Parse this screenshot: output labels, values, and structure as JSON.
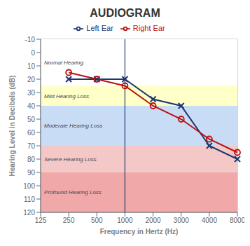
{
  "chart_data": {
    "type": "line",
    "title": "AUDIOGRAM",
    "x_label": "Frequency in Hertz (Hz)",
    "y_label": "Hearing Level in Decibels (dB)",
    "categories": [
      "125",
      "250",
      "500",
      "1000",
      "2000",
      "3000",
      "4000",
      "8000"
    ],
    "series": [
      {
        "name": "Left Ear",
        "color": "#1a3870",
        "marker": "x",
        "values": [
          null,
          20,
          20,
          20,
          35,
          40,
          70,
          80
        ]
      },
      {
        "name": "Right Ear",
        "color": "#bb1111",
        "marker": "circle",
        "values": [
          null,
          15,
          20,
          25,
          40,
          50,
          65,
          75
        ]
      }
    ],
    "ylim": [
      120,
      -10
    ],
    "yticks": [
      -10,
      0,
      10,
      20,
      30,
      40,
      50,
      60,
      70,
      80,
      90,
      100,
      110,
      120
    ],
    "grid": true,
    "legend": "top",
    "zones": [
      {
        "from": -10,
        "to": 25,
        "color": "#ffffff",
        "label": "Normal Hearing"
      },
      {
        "from": 25,
        "to": 40,
        "color": "#ffffc8",
        "label": "Mild Hearing Loss"
      },
      {
        "from": 40,
        "to": 70,
        "color": "#c8ddf5",
        "label": "Moderate Hearing Loss"
      },
      {
        "from": 70,
        "to": 90,
        "color": "#f5c8c8",
        "label": "Severe Hearing Loss"
      },
      {
        "from": 90,
        "to": 120,
        "color": "#f0a8a8",
        "label": "Profound Hearing Loss"
      }
    ],
    "reference_line": {
      "x": "1000",
      "color": "#1a3870"
    }
  }
}
